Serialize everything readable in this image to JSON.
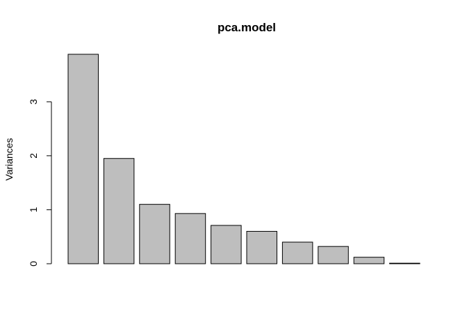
{
  "chart_data": {
    "type": "bar",
    "title": "pca.model",
    "xlabel": "",
    "ylabel": "Variances",
    "categories": [
      "",
      "",
      "",
      "",
      "",
      "",
      "",
      "",
      "",
      ""
    ],
    "values": [
      3.88,
      1.95,
      1.1,
      0.93,
      0.71,
      0.6,
      0.4,
      0.32,
      0.12,
      0.01
    ],
    "ylim": [
      0,
      3.88
    ],
    "yticks": [
      0,
      1,
      2,
      3
    ],
    "grid": false,
    "legend": "none",
    "bar_fill": "#bebebe",
    "bar_stroke": "#000000"
  }
}
